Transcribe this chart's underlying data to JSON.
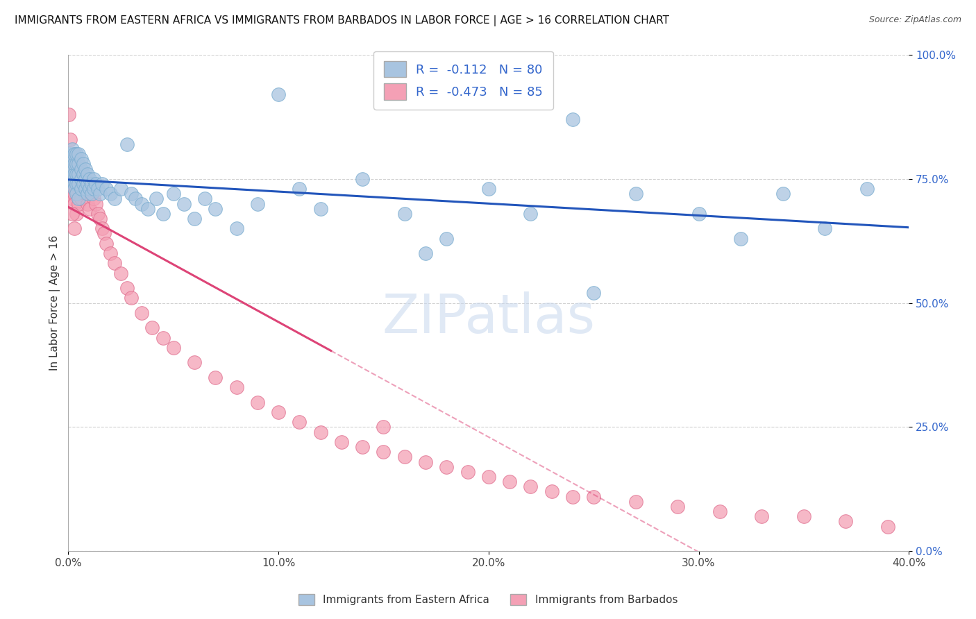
{
  "title": "IMMIGRANTS FROM EASTERN AFRICA VS IMMIGRANTS FROM BARBADOS IN LABOR FORCE | AGE > 16 CORRELATION CHART",
  "source": "Source: ZipAtlas.com",
  "ylabel": "In Labor Force | Age > 16",
  "R_blue": -0.112,
  "N_blue": 80,
  "R_pink": -0.473,
  "N_pink": 85,
  "legend_label_blue": "Immigrants from Eastern Africa",
  "legend_label_pink": "Immigrants from Barbados",
  "blue_color": "#a8c4e0",
  "blue_edge_color": "#7aadd0",
  "pink_color": "#f4a0b5",
  "pink_edge_color": "#e07090",
  "blue_line_color": "#2255bb",
  "pink_line_color": "#dd4477",
  "watermark": "ZIPatlas",
  "blue_scatter_x": [
    0.001,
    0.001,
    0.001,
    0.002,
    0.002,
    0.002,
    0.002,
    0.003,
    0.003,
    0.003,
    0.003,
    0.003,
    0.004,
    0.004,
    0.004,
    0.004,
    0.004,
    0.005,
    0.005,
    0.005,
    0.005,
    0.005,
    0.006,
    0.006,
    0.006,
    0.006,
    0.007,
    0.007,
    0.007,
    0.008,
    0.008,
    0.008,
    0.009,
    0.009,
    0.009,
    0.01,
    0.01,
    0.011,
    0.011,
    0.012,
    0.012,
    0.013,
    0.014,
    0.015,
    0.016,
    0.018,
    0.02,
    0.022,
    0.025,
    0.028,
    0.03,
    0.032,
    0.035,
    0.038,
    0.042,
    0.045,
    0.05,
    0.055,
    0.06,
    0.065,
    0.07,
    0.08,
    0.09,
    0.1,
    0.11,
    0.12,
    0.14,
    0.16,
    0.18,
    0.2,
    0.22,
    0.24,
    0.27,
    0.3,
    0.32,
    0.34,
    0.36,
    0.38,
    0.17,
    0.25
  ],
  "blue_scatter_y": [
    0.76,
    0.78,
    0.8,
    0.75,
    0.77,
    0.79,
    0.81,
    0.74,
    0.76,
    0.78,
    0.8,
    0.73,
    0.74,
    0.76,
    0.78,
    0.8,
    0.72,
    0.74,
    0.76,
    0.78,
    0.8,
    0.71,
    0.73,
    0.75,
    0.77,
    0.79,
    0.74,
    0.76,
    0.78,
    0.73,
    0.75,
    0.77,
    0.72,
    0.74,
    0.76,
    0.73,
    0.75,
    0.72,
    0.74,
    0.73,
    0.75,
    0.74,
    0.73,
    0.72,
    0.74,
    0.73,
    0.72,
    0.71,
    0.73,
    0.82,
    0.72,
    0.71,
    0.7,
    0.69,
    0.71,
    0.68,
    0.72,
    0.7,
    0.67,
    0.71,
    0.69,
    0.65,
    0.7,
    0.92,
    0.73,
    0.69,
    0.75,
    0.68,
    0.63,
    0.73,
    0.68,
    0.87,
    0.72,
    0.68,
    0.63,
    0.72,
    0.65,
    0.73,
    0.6,
    0.52
  ],
  "pink_scatter_x": [
    0.0005,
    0.001,
    0.001,
    0.001,
    0.001,
    0.002,
    0.002,
    0.002,
    0.002,
    0.002,
    0.003,
    0.003,
    0.003,
    0.003,
    0.003,
    0.003,
    0.004,
    0.004,
    0.004,
    0.004,
    0.004,
    0.005,
    0.005,
    0.005,
    0.005,
    0.006,
    0.006,
    0.006,
    0.007,
    0.007,
    0.008,
    0.008,
    0.009,
    0.009,
    0.01,
    0.01,
    0.011,
    0.012,
    0.013,
    0.014,
    0.015,
    0.016,
    0.017,
    0.018,
    0.02,
    0.022,
    0.025,
    0.028,
    0.03,
    0.035,
    0.04,
    0.045,
    0.05,
    0.06,
    0.07,
    0.08,
    0.09,
    0.1,
    0.11,
    0.12,
    0.13,
    0.14,
    0.15,
    0.16,
    0.17,
    0.18,
    0.19,
    0.2,
    0.21,
    0.22,
    0.23,
    0.24,
    0.25,
    0.27,
    0.29,
    0.31,
    0.33,
    0.35,
    0.37,
    0.39,
    0.0003,
    0.001,
    0.002,
    0.003,
    0.15
  ],
  "pink_scatter_y": [
    0.77,
    0.78,
    0.76,
    0.74,
    0.72,
    0.79,
    0.77,
    0.75,
    0.73,
    0.71,
    0.8,
    0.78,
    0.76,
    0.74,
    0.72,
    0.7,
    0.79,
    0.77,
    0.75,
    0.73,
    0.68,
    0.78,
    0.76,
    0.73,
    0.7,
    0.77,
    0.74,
    0.71,
    0.76,
    0.73,
    0.75,
    0.72,
    0.74,
    0.7,
    0.73,
    0.69,
    0.72,
    0.71,
    0.7,
    0.68,
    0.67,
    0.65,
    0.64,
    0.62,
    0.6,
    0.58,
    0.56,
    0.53,
    0.51,
    0.48,
    0.45,
    0.43,
    0.41,
    0.38,
    0.35,
    0.33,
    0.3,
    0.28,
    0.26,
    0.24,
    0.22,
    0.21,
    0.2,
    0.19,
    0.18,
    0.17,
    0.16,
    0.15,
    0.14,
    0.13,
    0.12,
    0.11,
    0.11,
    0.1,
    0.09,
    0.08,
    0.07,
    0.07,
    0.06,
    0.05,
    0.88,
    0.83,
    0.68,
    0.65,
    0.25
  ],
  "xlim": [
    0.0,
    0.4
  ],
  "ylim": [
    0.0,
    1.0
  ],
  "xticks": [
    0.0,
    0.1,
    0.2,
    0.3,
    0.4
  ],
  "xticklabels": [
    "0.0%",
    "10.0%",
    "20.0%",
    "30.0%",
    "40.0%"
  ],
  "yticks": [
    0.0,
    0.25,
    0.5,
    0.75,
    1.0
  ],
  "yticklabels": [
    "0.0%",
    "25.0%",
    "50.0%",
    "75.0%",
    "100.0%"
  ],
  "grid_color": "#cccccc",
  "bg_color": "#ffffff",
  "pink_solid_xlim": [
    0.0,
    0.125
  ],
  "pink_dashed_xlim": [
    0.125,
    0.4
  ]
}
